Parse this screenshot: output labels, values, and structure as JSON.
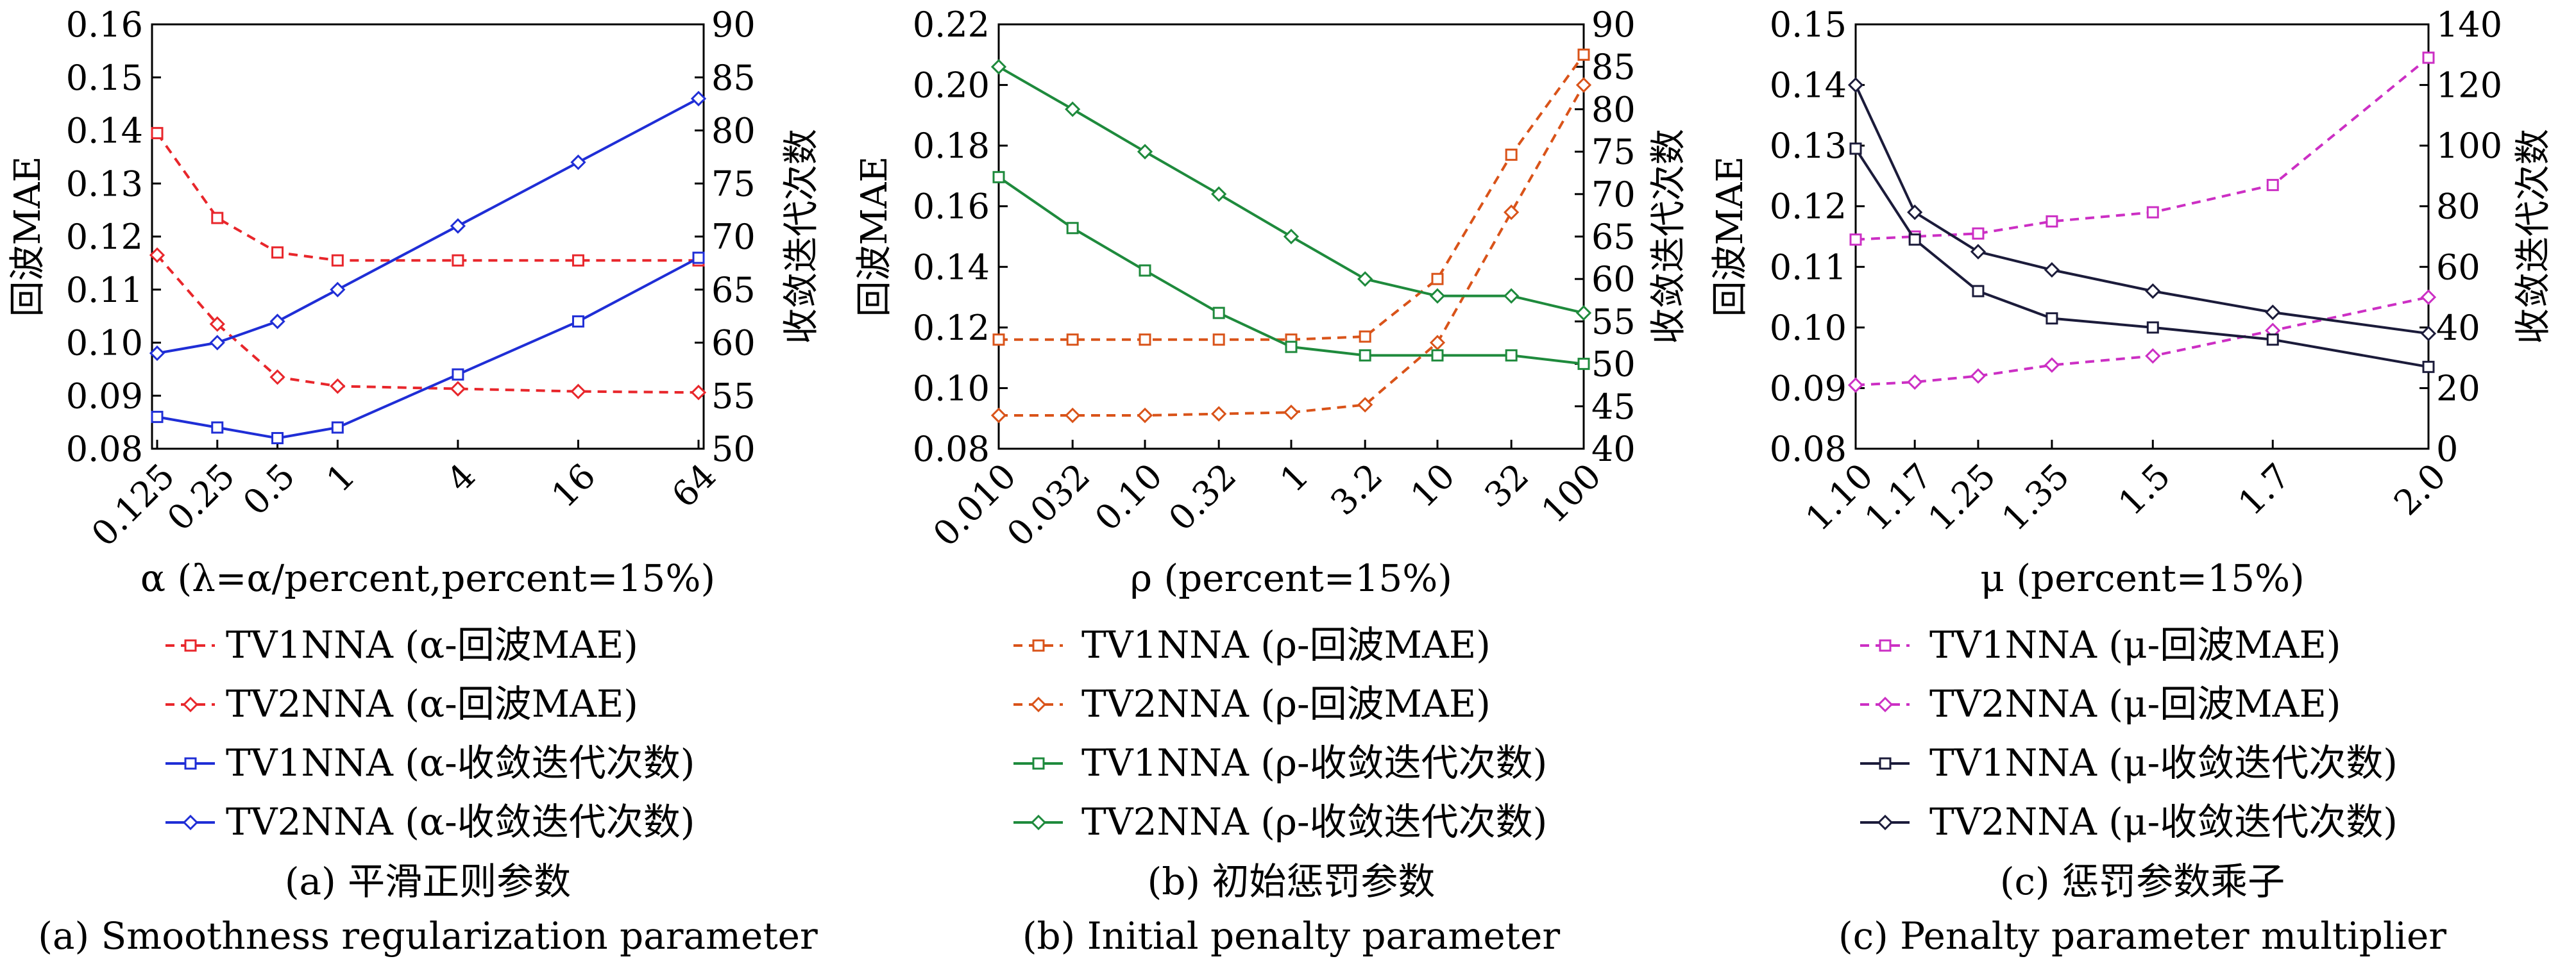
{
  "chart_data": [
    {
      "type": "line",
      "left_axis": {
        "label": "回波MAE",
        "ylim": [
          0.08,
          0.16
        ],
        "ticks": [
          "0.08",
          "0.09",
          "0.10",
          "0.11",
          "0.12",
          "0.13",
          "0.14",
          "0.15",
          "0.16"
        ]
      },
      "right_axis": {
        "label": "收敛迭代次数",
        "ylim": [
          50,
          90
        ],
        "ticks": [
          "50",
          "55",
          "60",
          "65",
          "70",
          "75",
          "80",
          "85",
          "90"
        ]
      },
      "xlabel": "α (λ=α/percent,percent=15%)",
      "categories": [
        "0.125",
        "0.25",
        "0.5",
        "1",
        "4",
        "16",
        "64"
      ],
      "x": [
        0.125,
        0.25,
        0.5,
        1,
        4,
        16,
        64
      ],
      "x_scale": "log",
      "series": [
        {
          "name": "TV1NNA (α-回波MAE)",
          "axis": "left",
          "color": "#e8262b",
          "dash": true,
          "marker": "square",
          "values": [
            0.1395,
            0.1235,
            0.117,
            0.1155,
            0.1155,
            0.1155,
            0.1155
          ]
        },
        {
          "name": "TV2NNA (α-回波MAE)",
          "axis": "left",
          "color": "#e8262b",
          "dash": true,
          "marker": "diamond",
          "values": [
            0.1165,
            0.1035,
            0.0935,
            0.0918,
            0.0913,
            0.0908,
            0.0906
          ]
        },
        {
          "name": "TV1NNA (α-收敛迭代次数)",
          "axis": "right",
          "color": "#1f2ed6",
          "dash": false,
          "marker": "square",
          "values": [
            53,
            52,
            51,
            52,
            57,
            62,
            68
          ]
        },
        {
          "name": "TV2NNA (α-收敛迭代次数)",
          "axis": "right",
          "color": "#1f2ed6",
          "dash": false,
          "marker": "diamond",
          "values": [
            59,
            60,
            62,
            65,
            71,
            77,
            83
          ]
        }
      ],
      "caption_cn": "(a) 平滑正则参数",
      "caption_en": "(a) Smoothness regularization parameter"
    },
    {
      "type": "line",
      "left_axis": {
        "label": "回波MAE",
        "ylim": [
          0.08,
          0.22
        ],
        "ticks": [
          "0.08",
          "0.10",
          "0.12",
          "0.14",
          "0.16",
          "0.18",
          "0.20",
          "0.22"
        ]
      },
      "right_axis": {
        "label": "收敛迭代次数",
        "ylim": [
          40,
          90
        ],
        "ticks": [
          "40",
          "45",
          "50",
          "55",
          "60",
          "65",
          "70",
          "75",
          "80",
          "85",
          "90"
        ]
      },
      "xlabel": "ρ (percent=15%)",
      "categories": [
        "0.010",
        "0.032",
        "0.10",
        "0.32",
        "1",
        "3.2",
        "10",
        "32",
        "100"
      ],
      "x": [
        0.01,
        0.032,
        0.1,
        0.32,
        1,
        3.2,
        10,
        32,
        100
      ],
      "x_scale": "log",
      "series": [
        {
          "name": "TV1NNA (ρ-回波MAE)",
          "axis": "left",
          "color": "#d95319",
          "dash": true,
          "marker": "square",
          "values": [
            0.116,
            0.116,
            0.116,
            0.116,
            0.116,
            0.117,
            0.136,
            0.177,
            0.21
          ]
        },
        {
          "name": "TV2NNA (ρ-回波MAE)",
          "axis": "left",
          "color": "#d95319",
          "dash": true,
          "marker": "diamond",
          "values": [
            0.091,
            0.091,
            0.091,
            0.0915,
            0.092,
            0.0945,
            0.115,
            0.158,
            0.2
          ]
        },
        {
          "name": "TV1NNA (ρ-收敛迭代次数)",
          "axis": "right",
          "color": "#1e8a3c",
          "dash": false,
          "marker": "square",
          "values": [
            72,
            66,
            61,
            56,
            52,
            51,
            51,
            51,
            50
          ]
        },
        {
          "name": "TV2NNA (ρ-收敛迭代次数)",
          "axis": "right",
          "color": "#1e8a3c",
          "dash": false,
          "marker": "diamond",
          "values": [
            85,
            80,
            75,
            70,
            65,
            60,
            58,
            58,
            56
          ]
        }
      ],
      "caption_cn": "(b) 初始惩罚参数",
      "caption_en": "(b) Initial penalty parameter"
    },
    {
      "type": "line",
      "left_axis": {
        "label": "回波MAE",
        "ylim": [
          0.08,
          0.15
        ],
        "ticks": [
          "0.08",
          "0.09",
          "0.10",
          "0.11",
          "0.12",
          "0.13",
          "0.14",
          "0.15"
        ]
      },
      "right_axis": {
        "label": "收敛迭代次数",
        "ylim": [
          0,
          140
        ],
        "ticks": [
          "0",
          "20",
          "40",
          "60",
          "80",
          "100",
          "120",
          "140"
        ]
      },
      "xlabel": "μ (percent=15%)",
      "categories": [
        "1.10",
        "1.17",
        "1.25",
        "1.35",
        "1.5",
        "1.7",
        "2.0"
      ],
      "x": [
        1.1,
        1.17,
        1.25,
        1.35,
        1.5,
        1.7,
        2.0
      ],
      "x_scale": "log",
      "series": [
        {
          "name": "TV1NNA (μ-回波MAE)",
          "axis": "left",
          "color": "#cc2fc4",
          "dash": true,
          "marker": "square",
          "values": [
            0.1145,
            0.115,
            0.1155,
            0.1175,
            0.119,
            0.1235,
            0.1445
          ]
        },
        {
          "name": "TV2NNA (μ-回波MAE)",
          "axis": "left",
          "color": "#cc2fc4",
          "dash": true,
          "marker": "diamond",
          "values": [
            0.0905,
            0.091,
            0.092,
            0.0938,
            0.0953,
            0.0995,
            0.105
          ]
        },
        {
          "name": "TV1NNA (μ-收敛迭代次数)",
          "axis": "right",
          "color": "#1b1b3a",
          "dash": false,
          "marker": "square",
          "values": [
            99,
            69,
            52,
            43,
            40,
            36,
            27
          ]
        },
        {
          "name": "TV2NNA (μ-收敛迭代次数)",
          "axis": "right",
          "color": "#1b1b3a",
          "dash": false,
          "marker": "diamond",
          "values": [
            120,
            78,
            65,
            59,
            52,
            45,
            38
          ]
        }
      ],
      "caption_cn": "(c) 惩罚参数乘子",
      "caption_en": "(c) Penalty parameter multiplier"
    }
  ]
}
